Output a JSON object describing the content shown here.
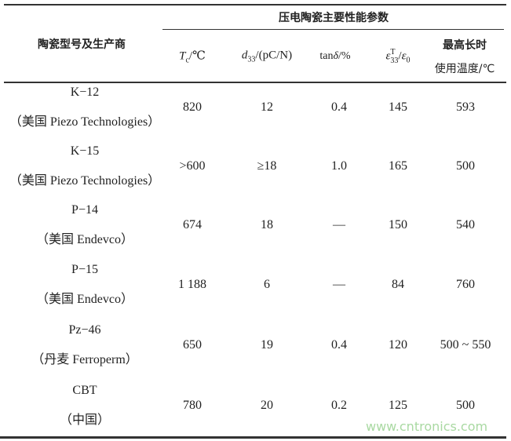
{
  "header": {
    "group_title": "压电陶瓷主要性能参数",
    "col_name": "陶瓷型号及生产商",
    "col_tc": "Tc/℃",
    "col_d33": "d33/(pC/N)",
    "col_tan": "tanδ/%",
    "col_eps": "ε33T/ε0",
    "col_max_line1": "最高长时",
    "col_max_line2": "使用温度/℃"
  },
  "rows": [
    {
      "model": "K−12",
      "maker": "（美国 Piezo Technologies）",
      "tc": "820",
      "d33": "12",
      "tan": "0.4",
      "eps": "145",
      "max": "593"
    },
    {
      "model": "K−15",
      "maker": "（美国 Piezo Technologies）",
      "tc": ">600",
      "d33": "≥18",
      "tan": "1.0",
      "eps": "165",
      "max": "500"
    },
    {
      "model": "P−14",
      "maker": "（美国 Endevco）",
      "tc": "674",
      "d33": "18",
      "tan": "—",
      "eps": "150",
      "max": "540"
    },
    {
      "model": "P−15",
      "maker": "（美国 Endevco）",
      "tc": "1 188",
      "d33": "6",
      "tan": "—",
      "eps": "84",
      "max": "760"
    },
    {
      "model": "Pz−46",
      "maker": "（丹麦 Ferroperm）",
      "tc": "650",
      "d33": "19",
      "tan": "0.4",
      "eps": "120",
      "max": "500 ~ 550"
    },
    {
      "model": "CBT",
      "maker": "（中国）",
      "tc": "780",
      "d33": "20",
      "tan": "0.2",
      "eps": "125",
      "max": "500"
    }
  ],
  "watermark": "www.cntronics.com"
}
